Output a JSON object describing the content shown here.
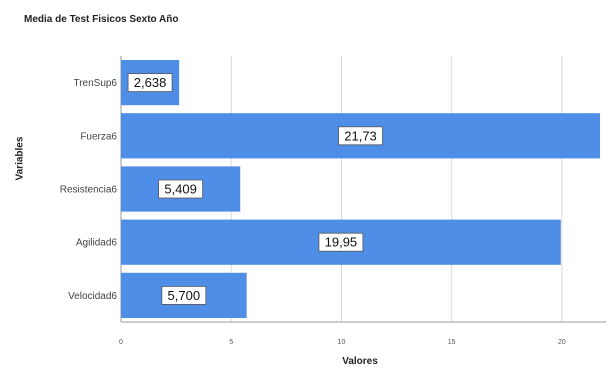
{
  "chart_data": {
    "type": "bar",
    "orientation": "horizontal",
    "title": "Media de Test Fisicos Sexto Año",
    "xlabel": "Valores",
    "ylabel": "Variables",
    "categories": [
      "TrenSup6",
      "Fuerza6",
      "Resistencia6",
      "Agilidad6",
      "Velocidad6"
    ],
    "values": [
      2.638,
      21.73,
      5.409,
      19.95,
      5.7
    ],
    "value_labels": [
      "2,638",
      "21,73",
      "5,409",
      "19,95",
      "5,700"
    ],
    "xlim": [
      0,
      22
    ],
    "xticks": [
      0,
      5,
      10,
      15,
      20
    ],
    "xtick_labels": [
      "0",
      "5",
      "10",
      "15",
      "20"
    ],
    "grid": true,
    "colors": {
      "bar": "#4f8ee6",
      "grid": "#d9d9d9",
      "axis": "#9a9a9a"
    }
  }
}
